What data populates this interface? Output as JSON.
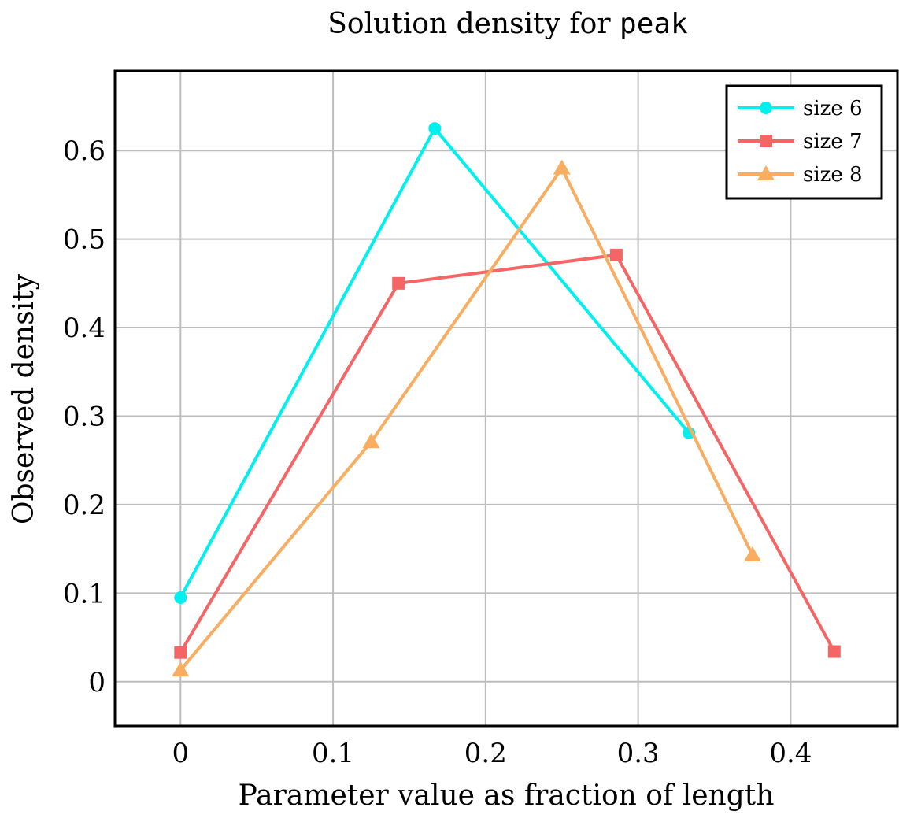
{
  "chart_data": {
    "type": "line",
    "title": "Solution density for",
    "title_code": "peak",
    "xlabel": "Parameter value as fraction of length",
    "ylabel": "Observed density",
    "xlim": [
      -0.043,
      0.47
    ],
    "ylim": [
      -0.05,
      0.69
    ],
    "x_ticks": [
      0,
      0.1,
      0.2,
      0.3,
      0.4
    ],
    "x_tick_labels": [
      "0",
      "0.1",
      "0.2",
      "0.3",
      "0.4"
    ],
    "y_ticks": [
      0,
      0.1,
      0.2,
      0.3,
      0.4,
      0.5,
      0.6
    ],
    "y_tick_labels": [
      "0",
      "0.1",
      "0.2",
      "0.3",
      "0.4",
      "0.5",
      "0.6"
    ],
    "grid": true,
    "legend_position": "top-right",
    "series": [
      {
        "name": "size 6",
        "color": "#00f0f0",
        "marker": "circle",
        "x": [
          0,
          0.1667,
          0.3333
        ],
        "y": [
          0.095,
          0.625,
          0.281
        ]
      },
      {
        "name": "size 7",
        "color": "#f56565",
        "marker": "square",
        "x": [
          0,
          0.1429,
          0.2857,
          0.4286
        ],
        "y": [
          0.033,
          0.45,
          0.482,
          0.034
        ]
      },
      {
        "name": "size 8",
        "color": "#f8ad60",
        "marker": "triangle",
        "x": [
          0,
          0.125,
          0.25,
          0.375
        ],
        "y": [
          0.013,
          0.271,
          0.58,
          0.143
        ]
      }
    ]
  }
}
